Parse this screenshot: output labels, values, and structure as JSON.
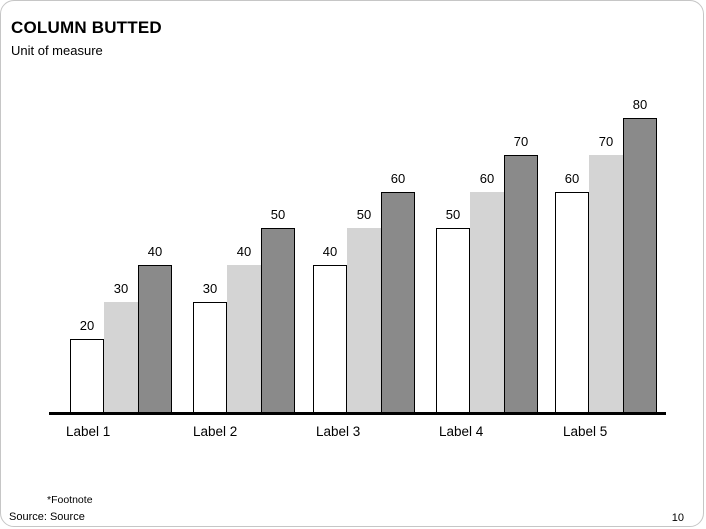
{
  "slide": {
    "title": "COLUMN BUTTED",
    "subtitle": "Unit of measure",
    "footnote": "*Footnote",
    "source": "Source: Source",
    "page_number": "10"
  },
  "chart_data": {
    "type": "bar",
    "title": "COLUMN BUTTED",
    "ylabel": "Unit of measure",
    "xlabel": "",
    "categories": [
      "Label 1",
      "Label 2",
      "Label 3",
      "Label 4",
      "Label 5"
    ],
    "series": [
      {
        "name": "White (outlined)",
        "fill": "#ffffff",
        "outlined": true,
        "values": [
          20,
          30,
          40,
          50,
          60
        ]
      },
      {
        "name": "Light gray",
        "fill": "#d4d4d4",
        "outlined": false,
        "values": [
          30,
          40,
          50,
          60,
          70
        ]
      },
      {
        "name": "Dark gray",
        "fill": "#8a8a8a",
        "outlined": true,
        "values": [
          40,
          50,
          60,
          70,
          80
        ]
      }
    ],
    "value_labels_shown": true,
    "legend": "none",
    "layout": {
      "bars_butted": true,
      "gridlines": false,
      "y_axis_shown": false,
      "ylim": [
        0,
        85
      ],
      "baseline_color": "#000000"
    }
  },
  "colors": {
    "background": "#ffffff",
    "text": "#000000",
    "axis": "#000000",
    "bar_white": "#ffffff",
    "bar_light_gray": "#d4d4d4",
    "bar_dark_gray": "#8a8a8a",
    "slide_border": "#c6c6c6"
  }
}
